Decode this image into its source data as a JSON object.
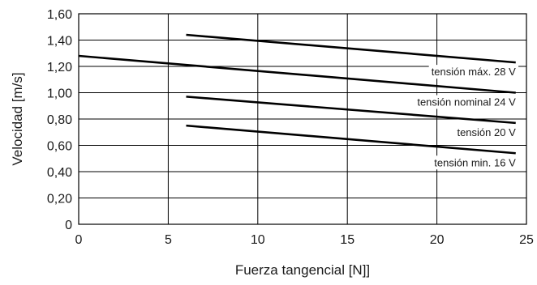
{
  "chart_data": {
    "type": "line",
    "title": "",
    "xlabel": "Fuerza tangencial [N]]",
    "ylabel": "Velocidad [m/s]",
    "xlim": [
      0,
      25
    ],
    "ylim": [
      0,
      1.6
    ],
    "x_ticks": [
      "0",
      "5",
      "10",
      "15",
      "20",
      "25"
    ],
    "y_ticks": [
      "0",
      "0,20",
      "0,40",
      "0,60",
      "0,80",
      "1,00",
      "1,20",
      "1,40",
      "1,60"
    ],
    "grid": true,
    "series": [
      {
        "name": "tensión máx. 28 V",
        "x": [
          6,
          24.4
        ],
        "y": [
          1.44,
          1.23
        ]
      },
      {
        "name": "tensión nominal 24 V",
        "x": [
          0,
          24.4
        ],
        "y": [
          1.28,
          1.0
        ]
      },
      {
        "name": "tensión 20 V",
        "x": [
          6,
          24.4
        ],
        "y": [
          0.97,
          0.77
        ]
      },
      {
        "name": "tensión min. 16 V",
        "x": [
          6,
          24.4
        ],
        "y": [
          0.75,
          0.54
        ]
      }
    ]
  }
}
